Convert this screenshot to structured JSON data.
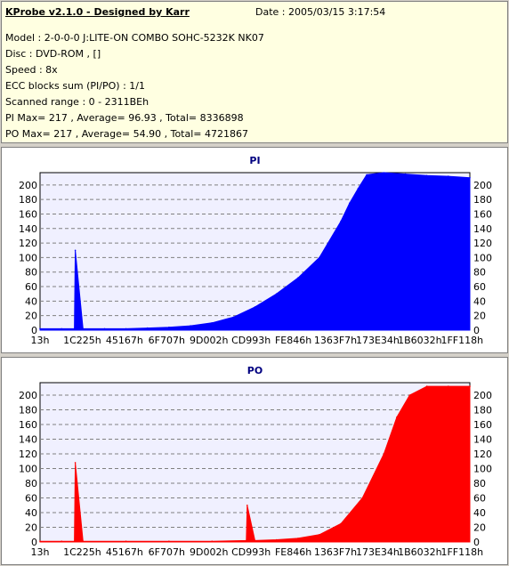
{
  "info": {
    "title": "KProbe v2.1.0 - Designed by Karr",
    "date": "Date : 2005/03/15 3:17:54",
    "model": "Model : 2-0-0-0 J:LITE-ON COMBO SOHC-5232K NK07",
    "disc": "Disc : DVD-ROM ,  []",
    "speed": "Speed : 8x",
    "ecc": "ECC blocks sum (PI/PO) : 1/1",
    "range": "Scanned range : 0 - 2311BEh",
    "pi": "PI Max= 217 , Average= 96.93 , Total= 8336898",
    "po": "PO Max= 217 , Average= 54.90 , Total= 4721867"
  },
  "chart_data": [
    {
      "type": "area",
      "title": "PI",
      "color": "#0000ff",
      "ylim": [
        0,
        217
      ],
      "yticks": [
        0,
        20,
        40,
        60,
        80,
        100,
        120,
        140,
        160,
        180,
        200
      ],
      "xticks": [
        "13h",
        "1C225h",
        "45167h",
        "6F707h",
        "9D002h",
        "CD993h",
        "FE846h",
        "1363F7h",
        "173E34h",
        "1B6032h",
        "1FF118h"
      ],
      "grid": true,
      "x": [
        0,
        0.05,
        0.08,
        0.082,
        0.1,
        0.15,
        0.2,
        0.25,
        0.3,
        0.35,
        0.4,
        0.45,
        0.5,
        0.55,
        0.6,
        0.65,
        0.7,
        0.72,
        0.74,
        0.76,
        0.8,
        0.85,
        0.9,
        0.95,
        1.0
      ],
      "values": [
        2,
        2,
        2,
        110,
        2,
        2,
        2,
        3,
        4,
        6,
        10,
        18,
        32,
        50,
        72,
        100,
        150,
        175,
        195,
        214,
        217,
        215,
        213,
        212,
        210
      ]
    },
    {
      "type": "area",
      "title": "PO",
      "color": "#ff0000",
      "ylim": [
        0,
        217
      ],
      "yticks": [
        0,
        20,
        40,
        60,
        80,
        100,
        120,
        140,
        160,
        180,
        200
      ],
      "xticks": [
        "13h",
        "1C225h",
        "45167h",
        "6F707h",
        "9D002h",
        "CD993h",
        "FE846h",
        "1363F7h",
        "173E34h",
        "1B6032h",
        "1FF118h"
      ],
      "grid": true,
      "x": [
        0,
        0.05,
        0.08,
        0.082,
        0.1,
        0.2,
        0.3,
        0.4,
        0.48,
        0.482,
        0.5,
        0.55,
        0.6,
        0.65,
        0.7,
        0.75,
        0.8,
        0.83,
        0.86,
        0.9,
        0.95,
        1.0
      ],
      "values": [
        1,
        1,
        1,
        108,
        1,
        1,
        1,
        1,
        2,
        50,
        2,
        3,
        5,
        10,
        25,
        60,
        120,
        170,
        200,
        212,
        212,
        212
      ]
    }
  ]
}
